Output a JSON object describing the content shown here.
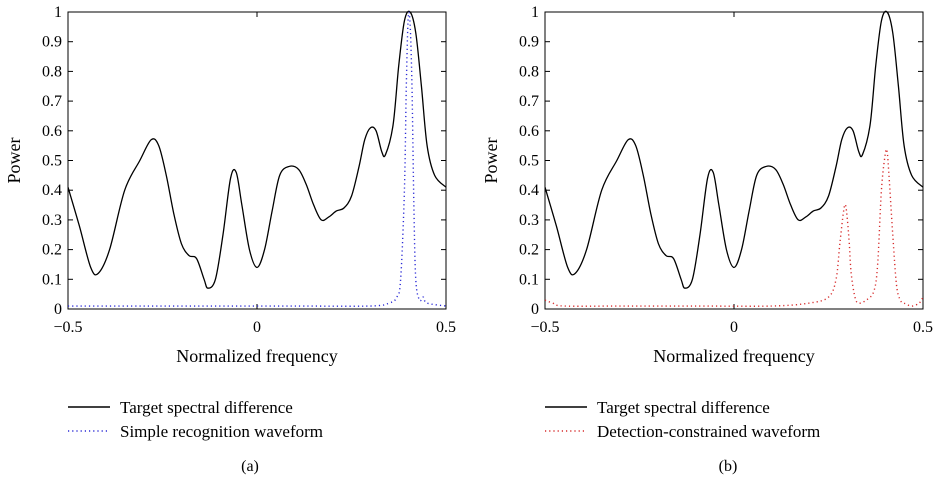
{
  "chart_data": [
    {
      "type": "line",
      "panel_label": "(a)",
      "xlabel": "Normalized frequency",
      "ylabel": "Power",
      "xlim": [
        -0.5,
        0.5
      ],
      "ylim": [
        0,
        1
      ],
      "xticks": [
        "−0.5",
        "0",
        "0.5"
      ],
      "yticks": [
        "0",
        "0.1",
        "0.2",
        "0.3",
        "0.4",
        "0.5",
        "0.6",
        "0.7",
        "0.8",
        "0.9",
        "1"
      ],
      "grid": false,
      "legend_position": "below",
      "series": [
        {
          "name": "Target spectral difference",
          "style": "solid",
          "color": "#000000",
          "x": [
            -0.5,
            -0.47,
            -0.44,
            -0.42,
            -0.39,
            -0.35,
            -0.31,
            -0.28,
            -0.26,
            -0.24,
            -0.22,
            -0.2,
            -0.18,
            -0.16,
            -0.14,
            -0.13,
            -0.11,
            -0.09,
            -0.07,
            -0.055,
            -0.04,
            -0.02,
            0.0,
            0.02,
            0.04,
            0.06,
            0.085,
            0.11,
            0.13,
            0.15,
            0.17,
            0.19,
            0.21,
            0.23,
            0.25,
            0.27,
            0.285,
            0.3,
            0.315,
            0.33,
            0.34,
            0.36,
            0.375,
            0.39,
            0.405,
            0.42,
            0.435,
            0.45,
            0.47,
            0.5
          ],
          "y": [
            0.41,
            0.28,
            0.14,
            0.12,
            0.2,
            0.4,
            0.5,
            0.57,
            0.55,
            0.45,
            0.32,
            0.22,
            0.18,
            0.17,
            0.1,
            0.07,
            0.1,
            0.25,
            0.44,
            0.46,
            0.35,
            0.2,
            0.14,
            0.2,
            0.33,
            0.45,
            0.48,
            0.47,
            0.42,
            0.35,
            0.3,
            0.31,
            0.33,
            0.34,
            0.38,
            0.48,
            0.57,
            0.61,
            0.6,
            0.53,
            0.52,
            0.62,
            0.82,
            0.97,
            1.0,
            0.93,
            0.75,
            0.55,
            0.45,
            0.41
          ]
        },
        {
          "name": "Simple recognition waveform",
          "style": "dotted",
          "color": "#2b2bd6",
          "x": [
            -0.5,
            -0.3,
            -0.1,
            0.1,
            0.3,
            0.35,
            0.37,
            0.38,
            0.39,
            0.395,
            0.4,
            0.405,
            0.41,
            0.415,
            0.42,
            0.43,
            0.44,
            0.45,
            0.5
          ],
          "y": [
            0.01,
            0.01,
            0.01,
            0.01,
            0.01,
            0.02,
            0.04,
            0.1,
            0.4,
            0.75,
            0.98,
            0.96,
            0.75,
            0.35,
            0.1,
            0.03,
            0.04,
            0.02,
            0.01
          ]
        }
      ]
    },
    {
      "type": "line",
      "panel_label": "(b)",
      "xlabel": "Normalized frequency",
      "ylabel": "Power",
      "xlim": [
        -0.5,
        0.5
      ],
      "ylim": [
        0,
        1
      ],
      "xticks": [
        "−0.5",
        "0",
        "0.5"
      ],
      "yticks": [
        "0",
        "0.1",
        "0.2",
        "0.3",
        "0.4",
        "0.5",
        "0.6",
        "0.7",
        "0.8",
        "0.9",
        "1"
      ],
      "grid": false,
      "legend_position": "below",
      "series": [
        {
          "name": "Target spectral difference",
          "style": "solid",
          "color": "#000000",
          "x": [
            -0.5,
            -0.47,
            -0.44,
            -0.42,
            -0.39,
            -0.35,
            -0.31,
            -0.28,
            -0.26,
            -0.24,
            -0.22,
            -0.2,
            -0.18,
            -0.16,
            -0.14,
            -0.13,
            -0.11,
            -0.09,
            -0.07,
            -0.055,
            -0.04,
            -0.02,
            0.0,
            0.02,
            0.04,
            0.06,
            0.085,
            0.11,
            0.13,
            0.15,
            0.17,
            0.19,
            0.21,
            0.23,
            0.25,
            0.27,
            0.285,
            0.3,
            0.315,
            0.33,
            0.34,
            0.36,
            0.375,
            0.39,
            0.405,
            0.42,
            0.435,
            0.45,
            0.47,
            0.5
          ],
          "y": [
            0.41,
            0.28,
            0.14,
            0.12,
            0.2,
            0.4,
            0.5,
            0.57,
            0.55,
            0.45,
            0.32,
            0.22,
            0.18,
            0.17,
            0.1,
            0.07,
            0.1,
            0.25,
            0.44,
            0.46,
            0.35,
            0.2,
            0.14,
            0.2,
            0.33,
            0.45,
            0.48,
            0.47,
            0.42,
            0.35,
            0.3,
            0.31,
            0.33,
            0.34,
            0.38,
            0.48,
            0.57,
            0.61,
            0.6,
            0.53,
            0.52,
            0.62,
            0.82,
            0.97,
            1.0,
            0.93,
            0.75,
            0.55,
            0.45,
            0.41
          ]
        },
        {
          "name": "Detection-constrained waveform",
          "style": "dotted",
          "color": "#d62b2b",
          "x": [
            -0.5,
            -0.48,
            -0.45,
            -0.3,
            -0.1,
            0.1,
            0.2,
            0.25,
            0.27,
            0.28,
            0.29,
            0.295,
            0.3,
            0.305,
            0.31,
            0.32,
            0.33,
            0.35,
            0.37,
            0.38,
            0.39,
            0.4,
            0.405,
            0.41,
            0.42,
            0.43,
            0.44,
            0.45,
            0.47,
            0.49,
            0.5
          ],
          "y": [
            0.03,
            0.02,
            0.01,
            0.01,
            0.01,
            0.01,
            0.02,
            0.04,
            0.1,
            0.22,
            0.33,
            0.35,
            0.3,
            0.22,
            0.12,
            0.04,
            0.02,
            0.03,
            0.06,
            0.15,
            0.4,
            0.52,
            0.53,
            0.45,
            0.25,
            0.08,
            0.03,
            0.02,
            0.01,
            0.02,
            0.04
          ]
        }
      ]
    }
  ]
}
